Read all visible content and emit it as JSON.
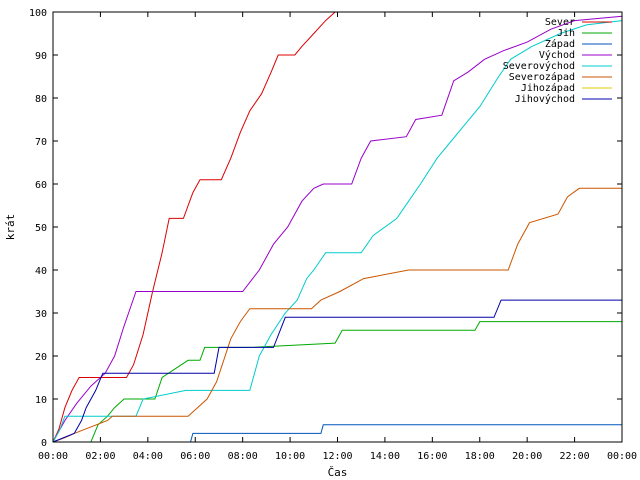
{
  "chart_data": {
    "type": "line",
    "xlabel": "Čas",
    "ylabel": "krát",
    "xlim": [
      0,
      24
    ],
    "ylim": [
      0,
      100
    ],
    "x_ticks": [
      "00:00",
      "02:00",
      "04:00",
      "06:00",
      "08:00",
      "10:00",
      "12:00",
      "14:00",
      "16:00",
      "18:00",
      "20:00",
      "22:00",
      "00:00"
    ],
    "y_ticks": [
      "0",
      "10",
      "20",
      "30",
      "40",
      "50",
      "60",
      "70",
      "80",
      "90",
      "100"
    ],
    "grid": false,
    "legend_position": "top-right",
    "series": [
      {
        "name": "Sever",
        "color": "#dd0000",
        "points": [
          [
            0,
            0
          ],
          [
            0.25,
            3
          ],
          [
            0.5,
            8
          ],
          [
            0.8,
            12
          ],
          [
            1.1,
            15
          ],
          [
            2.5,
            15
          ],
          [
            3.1,
            15
          ],
          [
            3.4,
            18
          ],
          [
            3.8,
            25
          ],
          [
            4.2,
            35
          ],
          [
            4.6,
            44
          ],
          [
            4.9,
            52
          ],
          [
            5.5,
            52
          ],
          [
            5.9,
            58
          ],
          [
            6.2,
            61
          ],
          [
            7.1,
            61
          ],
          [
            7.5,
            66
          ],
          [
            7.9,
            72
          ],
          [
            8.3,
            77
          ],
          [
            8.8,
            81
          ],
          [
            9.2,
            86
          ],
          [
            9.5,
            90
          ],
          [
            10.2,
            90
          ],
          [
            10.5,
            92
          ],
          [
            11.0,
            95
          ],
          [
            11.5,
            98
          ],
          [
            11.9,
            100
          ]
        ]
      },
      {
        "name": "Jih",
        "color": "#00aa00",
        "points": [
          [
            0,
            0
          ],
          [
            1.6,
            0
          ],
          [
            1.9,
            4
          ],
          [
            2.3,
            6
          ],
          [
            2.6,
            8
          ],
          [
            3.0,
            10
          ],
          [
            4.3,
            10
          ],
          [
            4.6,
            15
          ],
          [
            5.7,
            19
          ],
          [
            6.2,
            19
          ],
          [
            6.4,
            22
          ],
          [
            8.0,
            22
          ],
          [
            8.4,
            22
          ],
          [
            11.9,
            23
          ],
          [
            12.2,
            26
          ],
          [
            17.8,
            26
          ],
          [
            18.0,
            28
          ],
          [
            24,
            28
          ]
        ]
      },
      {
        "name": "Západ",
        "color": "#0055bb",
        "points": [
          [
            0,
            0
          ],
          [
            5.8,
            0
          ],
          [
            5.9,
            2
          ],
          [
            11.3,
            2
          ],
          [
            11.4,
            4
          ],
          [
            24,
            4
          ]
        ]
      },
      {
        "name": "Východ",
        "color": "#9900cc",
        "points": [
          [
            0,
            0
          ],
          [
            0.5,
            5
          ],
          [
            1.0,
            9
          ],
          [
            1.6,
            13
          ],
          [
            2.2,
            16
          ],
          [
            2.6,
            20
          ],
          [
            3.0,
            27
          ],
          [
            3.5,
            35
          ],
          [
            8.0,
            35
          ],
          [
            8.7,
            40
          ],
          [
            9.3,
            46
          ],
          [
            9.9,
            50
          ],
          [
            10.5,
            56
          ],
          [
            11.0,
            59
          ],
          [
            11.4,
            60
          ],
          [
            12.6,
            60
          ],
          [
            13.0,
            66
          ],
          [
            13.4,
            70
          ],
          [
            14.9,
            71
          ],
          [
            15.3,
            75
          ],
          [
            16.4,
            76
          ],
          [
            16.9,
            84
          ],
          [
            17.5,
            86
          ],
          [
            18.2,
            89
          ],
          [
            19.0,
            91
          ],
          [
            20.0,
            93
          ],
          [
            21.0,
            96
          ],
          [
            22.0,
            98
          ],
          [
            24,
            99
          ]
        ]
      },
      {
        "name": "Severovýchod",
        "color": "#00cccc",
        "points": [
          [
            0,
            0
          ],
          [
            0.3,
            3
          ],
          [
            0.5,
            6
          ],
          [
            3.5,
            6
          ],
          [
            3.8,
            10
          ],
          [
            5.6,
            12
          ],
          [
            8.3,
            12
          ],
          [
            8.7,
            20
          ],
          [
            9.2,
            25
          ],
          [
            9.8,
            30
          ],
          [
            10.3,
            33
          ],
          [
            10.7,
            38
          ],
          [
            11.0,
            40
          ],
          [
            11.5,
            44
          ],
          [
            13.0,
            44
          ],
          [
            13.5,
            48
          ],
          [
            14.5,
            52
          ],
          [
            15.0,
            56
          ],
          [
            15.5,
            60
          ],
          [
            16.2,
            66
          ],
          [
            16.8,
            70
          ],
          [
            17.4,
            74
          ],
          [
            18.0,
            78
          ],
          [
            18.8,
            85
          ],
          [
            19.3,
            89
          ],
          [
            20.2,
            92
          ],
          [
            21.4,
            95
          ],
          [
            22.5,
            97
          ],
          [
            24,
            98
          ]
        ]
      },
      {
        "name": "Severozápad",
        "color": "#cc5500",
        "points": [
          [
            0,
            0
          ],
          [
            0.5,
            1
          ],
          [
            0.9,
            2
          ],
          [
            2.3,
            5
          ],
          [
            2.5,
            6
          ],
          [
            5.7,
            6
          ],
          [
            6.5,
            10
          ],
          [
            6.9,
            14
          ],
          [
            7.5,
            24
          ],
          [
            7.9,
            28
          ],
          [
            8.3,
            31
          ],
          [
            10.9,
            31
          ],
          [
            11.3,
            33
          ],
          [
            12.1,
            35
          ],
          [
            13.1,
            38
          ],
          [
            15.0,
            40
          ],
          [
            19.2,
            40
          ],
          [
            19.6,
            46
          ],
          [
            20.1,
            51
          ],
          [
            21.3,
            53
          ],
          [
            21.7,
            57
          ],
          [
            22.2,
            59
          ],
          [
            24,
            59
          ]
        ]
      },
      {
        "name": "Jihozápad",
        "color": "#ddcc00",
        "points": []
      },
      {
        "name": "Jihovýchod",
        "color": "#0000aa",
        "points": [
          [
            0,
            0
          ],
          [
            0.9,
            2
          ],
          [
            1.2,
            5
          ],
          [
            1.4,
            8
          ],
          [
            1.8,
            12
          ],
          [
            2.1,
            16
          ],
          [
            6.8,
            16
          ],
          [
            7.0,
            22
          ],
          [
            9.3,
            22
          ],
          [
            9.8,
            29
          ],
          [
            18.6,
            29
          ],
          [
            18.9,
            33
          ],
          [
            24,
            33
          ]
        ]
      }
    ]
  }
}
